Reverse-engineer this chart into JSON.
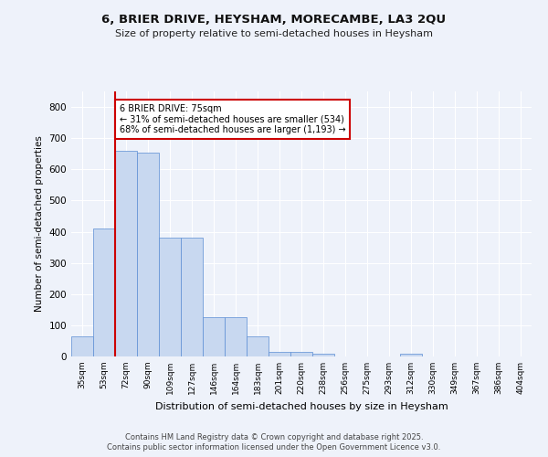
{
  "title_line1": "6, BRIER DRIVE, HEYSHAM, MORECAMBE, LA3 2QU",
  "title_line2": "Size of property relative to semi-detached houses in Heysham",
  "xlabel": "Distribution of semi-detached houses by size in Heysham",
  "ylabel": "Number of semi-detached properties",
  "bar_color": "#c8d8f0",
  "bar_edge_color": "#5b8dd4",
  "background_color": "#eef2fa",
  "grid_color": "#ffffff",
  "categories": [
    "35sqm",
    "53sqm",
    "72sqm",
    "90sqm",
    "109sqm",
    "127sqm",
    "146sqm",
    "164sqm",
    "183sqm",
    "201sqm",
    "220sqm",
    "238sqm",
    "256sqm",
    "275sqm",
    "293sqm",
    "312sqm",
    "330sqm",
    "349sqm",
    "367sqm",
    "386sqm",
    "404sqm"
  ],
  "bar_heights": [
    65,
    410,
    660,
    655,
    380,
    380,
    125,
    125,
    65,
    15,
    15,
    10,
    0,
    0,
    0,
    10,
    0,
    0,
    0,
    0,
    0
  ],
  "property_bar_index": 2,
  "annotation_line1": "6 BRIER DRIVE: 75sqm",
  "annotation_line2": "← 31% of semi-detached houses are smaller (534)",
  "annotation_line3": "68% of semi-detached houses are larger (1,193) →",
  "annotation_box_color": "#ffffff",
  "annotation_border_color": "#cc0000",
  "red_line_color": "#cc0000",
  "ylim": [
    0,
    850
  ],
  "yticks": [
    0,
    100,
    200,
    300,
    400,
    500,
    600,
    700,
    800
  ],
  "footer_line1": "Contains HM Land Registry data © Crown copyright and database right 2025.",
  "footer_line2": "Contains public sector information licensed under the Open Government Licence v3.0.",
  "footer_color": "#444444"
}
